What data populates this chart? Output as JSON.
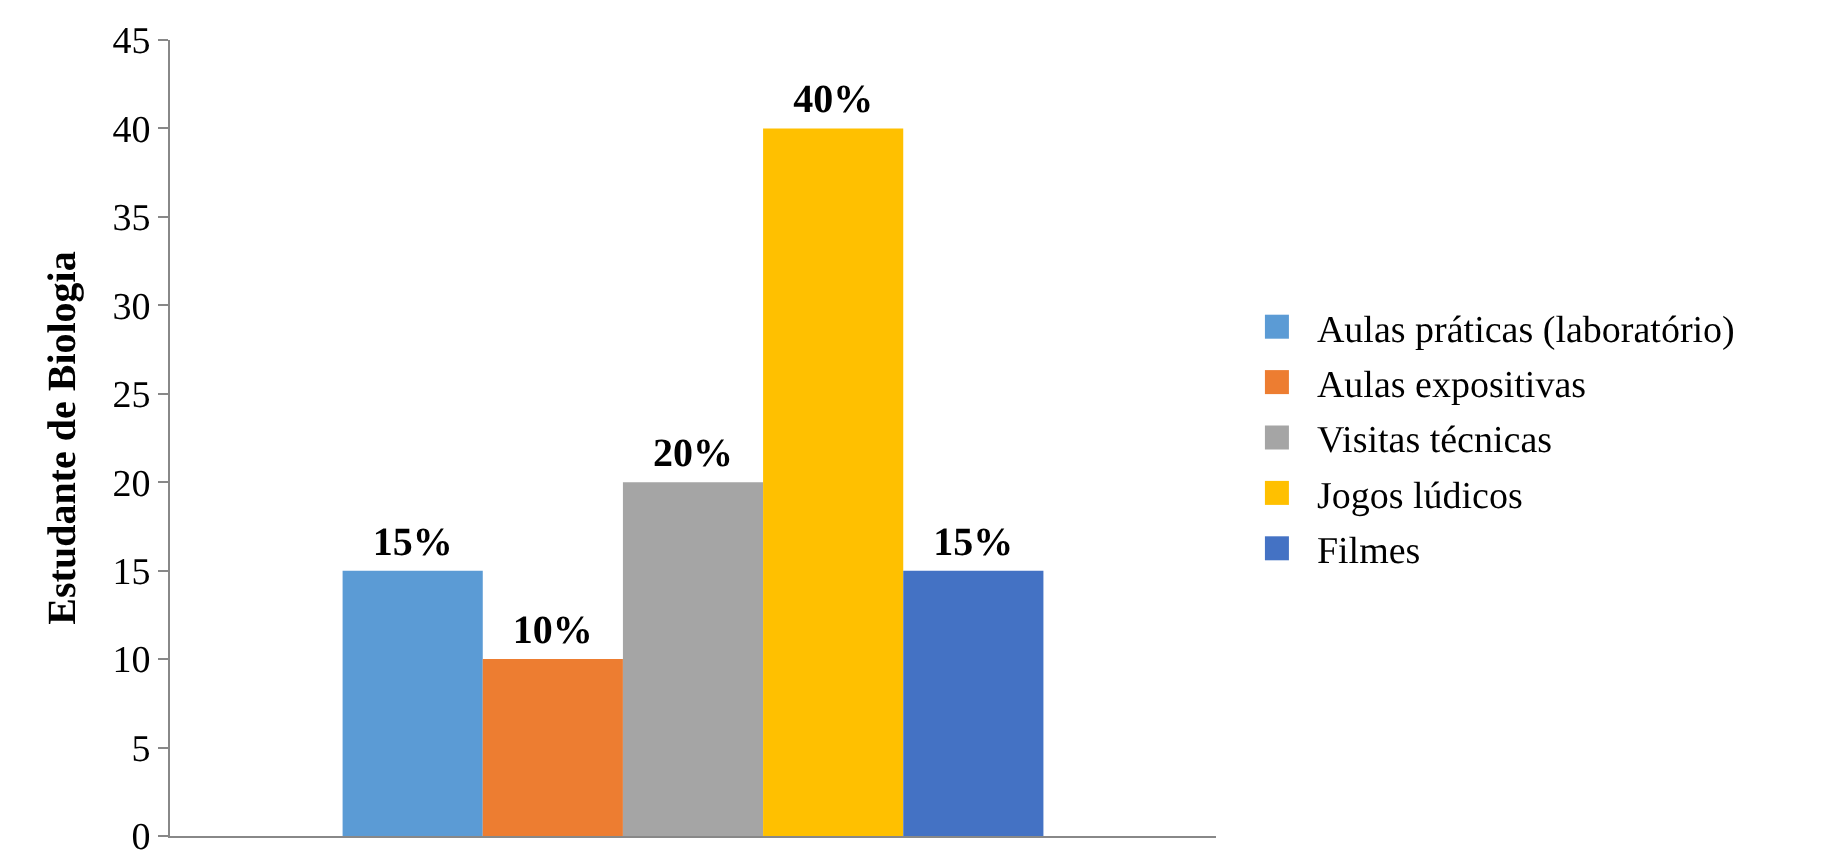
{
  "chart_data": {
    "type": "bar",
    "ylabel": "Estudante de Biologia",
    "categories": [
      null
    ],
    "series": [
      {
        "name": "Aulas práticas (laboratório)",
        "color": "#5b9bd5",
        "values": [
          15
        ],
        "value_labels": [
          "15%"
        ]
      },
      {
        "name": "Aulas expositivas",
        "color": "#ed7d31",
        "values": [
          10
        ],
        "value_labels": [
          "10%"
        ]
      },
      {
        "name": "Visitas técnicas",
        "color": "#a5a5a5",
        "values": [
          20
        ],
        "value_labels": [
          "20%"
        ]
      },
      {
        "name": "Jogos lúdicos",
        "color": "#ffc000",
        "values": [
          40
        ],
        "value_labels": [
          "40%"
        ]
      },
      {
        "name": "Filmes",
        "color": "#4472c4",
        "values": [
          15
        ],
        "value_labels": [
          "15%"
        ]
      }
    ],
    "ylim": [
      0,
      45
    ],
    "yticks": [
      0,
      5,
      10,
      15,
      20,
      25,
      30,
      35,
      40,
      45
    ],
    "legend": "right"
  }
}
